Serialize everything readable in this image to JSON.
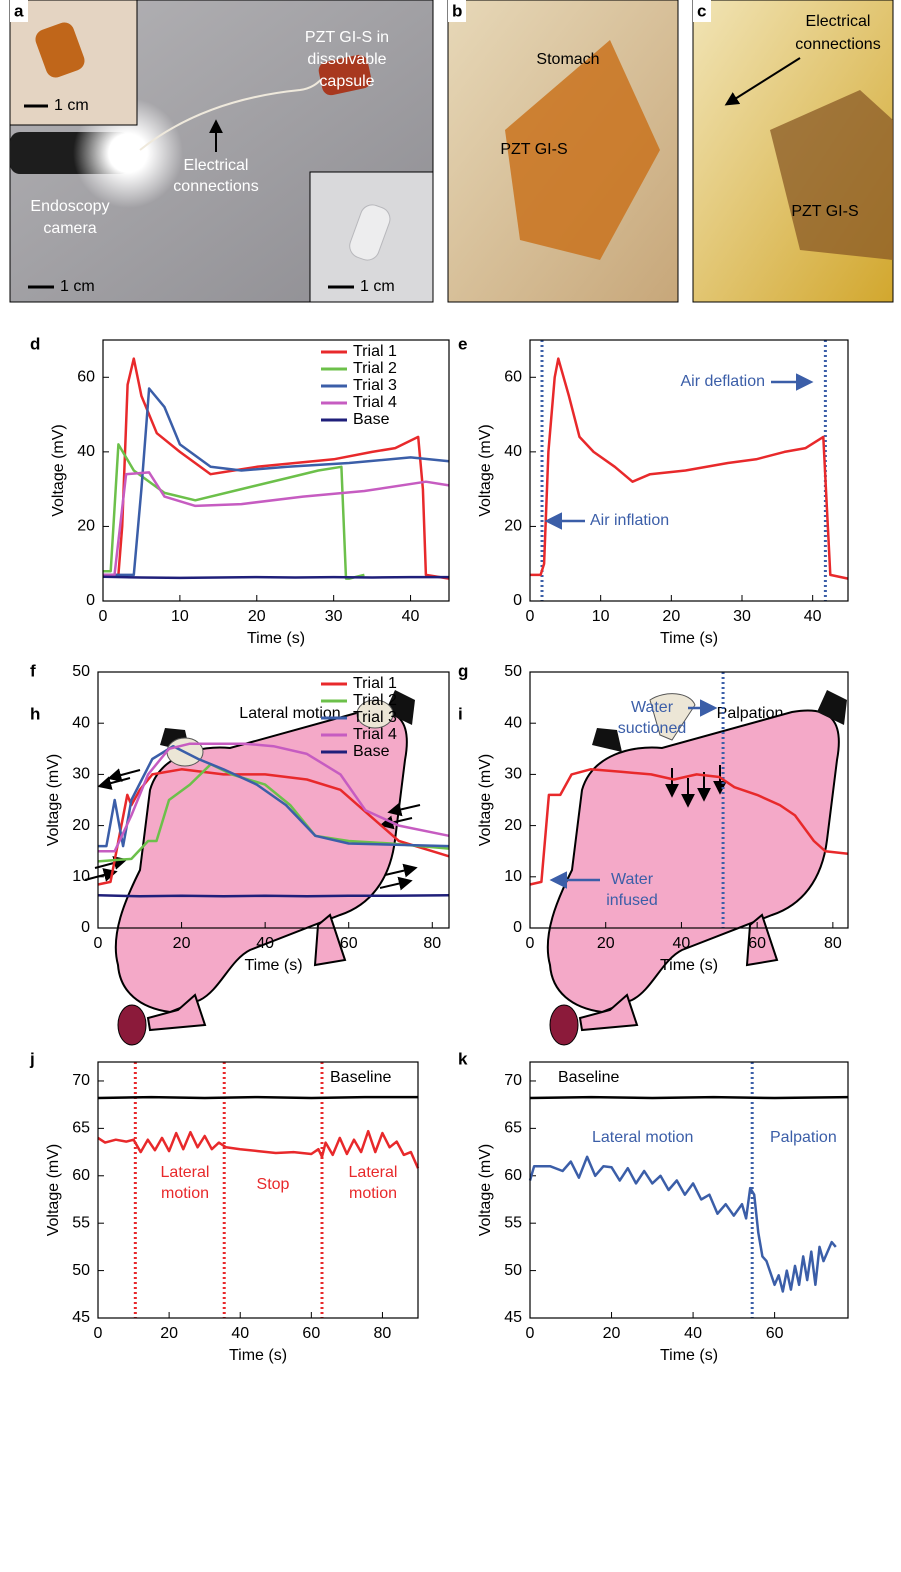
{
  "photos": {
    "a": {
      "label": "a",
      "capsule": [
        "PZT GI-S in",
        "dissolvable",
        "capsule"
      ],
      "connections": [
        "Electrical",
        "connections"
      ],
      "camera": [
        "Endoscopy",
        "camera"
      ],
      "scale": [
        "1 cm",
        "1 cm",
        "1 cm"
      ]
    },
    "b": {
      "label": "b",
      "organ": "Stomach",
      "sensor": "PZT GI-S"
    },
    "c": {
      "label": "c",
      "connections": [
        "Electrical",
        "connections"
      ],
      "sensor": "PZT GI-S"
    }
  },
  "illustrations": {
    "h": {
      "label": "h",
      "title": "Lateral motion"
    },
    "i": {
      "label": "i",
      "title": "Palpation"
    }
  },
  "chart_data": [
    {
      "type": "line",
      "panel": "d",
      "xlabel": "Time (s)",
      "ylabel": "Voltage (mV)",
      "xlim": [
        0,
        45
      ],
      "ylim": [
        0,
        70
      ],
      "xticks": [
        0,
        10,
        20,
        30,
        40
      ],
      "yticks": [
        0,
        20,
        40,
        60
      ],
      "legend": "upper right",
      "series": [
        {
          "name": "Trial 1",
          "color": "#e8292b",
          "x": [
            0,
            2,
            2.5,
            3.2,
            4,
            5,
            7,
            10,
            14,
            17,
            20,
            25,
            30,
            35,
            38,
            41,
            41.6,
            42,
            45
          ],
          "values": [
            7,
            7,
            20,
            58,
            65,
            55,
            45,
            40,
            34,
            35,
            36,
            37,
            38,
            40,
            41,
            44,
            30,
            7,
            6
          ]
        },
        {
          "name": "Trial 2",
          "color": "#6cc04a",
          "x": [
            0,
            1,
            2,
            4,
            8,
            12,
            18,
            24,
            28,
            31,
            31.6,
            32,
            34
          ],
          "values": [
            8,
            8,
            42,
            35,
            29,
            27,
            30,
            33,
            35,
            36,
            6,
            6,
            7
          ]
        },
        {
          "name": "Trial 3",
          "color": "#3b5ea8",
          "x": [
            0,
            4,
            5,
            6,
            8,
            10,
            14,
            18,
            24,
            32,
            40,
            45
          ],
          "values": [
            7,
            7,
            30,
            57,
            52,
            42,
            36,
            35,
            36,
            37,
            38.5,
            37.5
          ]
        },
        {
          "name": "Trial 4",
          "color": "#c65cc1",
          "x": [
            0,
            1.5,
            3,
            6,
            8,
            12,
            18,
            26,
            34,
            42,
            45
          ],
          "values": [
            7,
            7,
            34,
            34.5,
            28,
            25.5,
            26,
            28,
            29.5,
            32,
            31
          ]
        },
        {
          "name": "Base",
          "color": "#1f1f7a",
          "x": [
            0,
            5,
            10,
            15,
            20,
            25,
            30,
            35,
            40,
            45
          ],
          "values": [
            6.5,
            6.3,
            6.2,
            6.3,
            6.4,
            6.3,
            6.4,
            6.3,
            6.4,
            6.4
          ]
        }
      ]
    },
    {
      "type": "line",
      "panel": "e",
      "xlabel": "Time (s)",
      "ylabel": "Voltage (mV)",
      "xlim": [
        0,
        45
      ],
      "ylim": [
        0,
        70
      ],
      "xticks": [
        0,
        10,
        20,
        30,
        40
      ],
      "yticks": [
        0,
        20,
        40,
        60
      ],
      "vlines": [
        1.7,
        41.8
      ],
      "vline_color": "#3b5ea8",
      "annotations": [
        {
          "text": [
            "Air inflation"
          ],
          "color": "#3b5ea8"
        },
        {
          "text": [
            "Air deflation"
          ],
          "color": "#3b5ea8"
        }
      ],
      "series": [
        {
          "color": "#e8292b",
          "x": [
            0,
            1.5,
            2,
            2.6,
            3.5,
            4,
            5.5,
            7,
            9,
            12,
            14.5,
            17,
            22,
            28,
            32,
            36,
            39,
            41.5,
            42.5,
            45
          ],
          "values": [
            7,
            7,
            10,
            40,
            60,
            65,
            55,
            44,
            40,
            36,
            32,
            34,
            35,
            37,
            38,
            40,
            41,
            44,
            7,
            6
          ]
        }
      ]
    },
    {
      "type": "line",
      "panel": "f",
      "xlabel": "Time (s)",
      "ylabel": "Voltage (mV)",
      "xlim": [
        0,
        84
      ],
      "ylim": [
        0,
        50
      ],
      "xticks": [
        0,
        20,
        40,
        60,
        80
      ],
      "yticks": [
        0,
        10,
        20,
        30,
        40,
        50
      ],
      "legend": "upper right",
      "series": [
        {
          "name": "Trial 1",
          "color": "#e8292b",
          "x": [
            0,
            3,
            7,
            8,
            10,
            13,
            20,
            30,
            40,
            50,
            58,
            65,
            72,
            80,
            84
          ],
          "values": [
            8.5,
            9,
            26,
            24,
            27,
            30,
            31,
            30,
            30,
            29,
            27,
            22,
            17,
            15,
            14
          ]
        },
        {
          "name": "Trial 2",
          "color": "#6cc04a",
          "x": [
            0,
            8,
            12,
            14,
            17,
            22,
            27,
            32,
            40,
            46,
            52,
            60,
            70,
            84
          ],
          "values": [
            13,
            13.5,
            17,
            17,
            25,
            28,
            32,
            30,
            28,
            24,
            18,
            17,
            16.5,
            15.5
          ]
        },
        {
          "name": "Trial 3",
          "color": "#3b5ea8",
          "x": [
            0,
            2,
            4,
            6,
            8,
            13,
            18,
            24,
            30,
            38,
            45,
            52,
            60,
            84
          ],
          "values": [
            16,
            16,
            25,
            16,
            25,
            33,
            35.5,
            33,
            31,
            28,
            24,
            18,
            16.5,
            16
          ]
        },
        {
          "name": "Trial 4",
          "color": "#c65cc1",
          "x": [
            0,
            4,
            8,
            12,
            17,
            22,
            35,
            42,
            50,
            58,
            64,
            72,
            84
          ],
          "values": [
            15,
            15,
            22,
            30,
            35,
            36,
            36,
            35.5,
            34,
            30,
            23,
            20,
            18
          ]
        },
        {
          "name": "Base",
          "color": "#1f1f7a",
          "x": [
            0,
            10,
            20,
            30,
            40,
            50,
            60,
            70,
            84
          ],
          "values": [
            6.4,
            6.2,
            6.3,
            6.2,
            6.3,
            6.2,
            6.3,
            6.3,
            6.4
          ]
        }
      ]
    },
    {
      "type": "line",
      "panel": "g",
      "xlabel": "Time (s)",
      "ylabel": "Voltage (mV)",
      "xlim": [
        0,
        84
      ],
      "ylim": [
        0,
        50
      ],
      "xticks": [
        0,
        20,
        40,
        60,
        80
      ],
      "yticks": [
        0,
        10,
        20,
        30,
        40,
        50
      ],
      "vlines": [
        51
      ],
      "vline_color": "#3b5ea8",
      "annotations": [
        {
          "text": [
            "Water",
            "suctioned"
          ],
          "color": "#3b5ea8"
        },
        {
          "text": [
            "Water",
            "infused"
          ],
          "color": "#3b5ea8"
        }
      ],
      "series": [
        {
          "color": "#e8292b",
          "x": [
            0,
            3,
            5,
            8,
            11,
            16,
            24,
            32,
            38,
            44,
            50,
            54,
            60,
            66,
            70,
            75,
            78,
            84
          ],
          "values": [
            8.5,
            9,
            26,
            26,
            30,
            31,
            30.5,
            30,
            29,
            30,
            29.5,
            27.5,
            26,
            24,
            22,
            17,
            15,
            14.5
          ]
        }
      ]
    },
    {
      "type": "line",
      "panel": "j",
      "xlabel": "Time (s)",
      "ylabel": "Voltage (mV)",
      "xlim": [
        0,
        90
      ],
      "ylim": [
        45,
        72
      ],
      "xticks": [
        0,
        20,
        40,
        60,
        80
      ],
      "yticks": [
        45,
        50,
        55,
        60,
        65,
        70
      ],
      "vlines": [
        10.5,
        35.5,
        63
      ],
      "vline_color": "#e8292b",
      "annotations": [
        {
          "text": [
            "Baseline"
          ],
          "color": "#000000"
        },
        {
          "text": [
            "Lateral",
            "motion"
          ],
          "color": "#e8292b"
        },
        {
          "text": [
            "Stop"
          ],
          "color": "#e8292b"
        },
        {
          "text": [
            "Lateral",
            "motion"
          ],
          "color": "#e8292b"
        }
      ],
      "series": [
        {
          "color": "#000000",
          "x": [
            0,
            15,
            30,
            45,
            60,
            75,
            90
          ],
          "values": [
            68.2,
            68.3,
            68.2,
            68.3,
            68.2,
            68.3,
            68.3
          ]
        },
        {
          "color": "#e8292b",
          "x": [
            0,
            2,
            5,
            8,
            10,
            12,
            14,
            16,
            18,
            20,
            22,
            24,
            26,
            28,
            30,
            32,
            34,
            36,
            40,
            45,
            50,
            55,
            60,
            62,
            63,
            64,
            66,
            68,
            70,
            72,
            74,
            76,
            78,
            80,
            82,
            84,
            86,
            88,
            90
          ],
          "values": [
            64,
            63.5,
            63.8,
            63.6,
            63.8,
            62.5,
            63.8,
            62.7,
            64,
            62.6,
            64.5,
            62.8,
            64.6,
            63,
            64.2,
            62.8,
            63.5,
            63,
            62.8,
            62.6,
            62.4,
            62.5,
            62.3,
            62.8,
            62,
            63.5,
            62.2,
            64,
            62.3,
            63.8,
            62.5,
            64.7,
            62.5,
            64.5,
            63,
            63.6,
            62.2,
            62.5,
            60.8
          ]
        }
      ]
    },
    {
      "type": "line",
      "panel": "k",
      "xlabel": "Time (s)",
      "ylabel": "Voltage (mV)",
      "xlim": [
        0,
        78
      ],
      "ylim": [
        45,
        72
      ],
      "xticks": [
        0,
        20,
        40,
        60
      ],
      "yticks": [
        45,
        50,
        55,
        60,
        65,
        70
      ],
      "vlines": [
        54.5
      ],
      "vline_color": "#3b5ea8",
      "annotations": [
        {
          "text": [
            "Baseline"
          ],
          "color": "#000000"
        },
        {
          "text": [
            "Lateral motion"
          ],
          "color": "#3b5ea8"
        },
        {
          "text": [
            "Palpation"
          ],
          "color": "#3b5ea8"
        }
      ],
      "series": [
        {
          "color": "#000000",
          "x": [
            0,
            15,
            30,
            45,
            60,
            78
          ],
          "values": [
            68.2,
            68.3,
            68.2,
            68.3,
            68.2,
            68.3
          ]
        },
        {
          "color": "#3b5ea8",
          "x": [
            0,
            1,
            5,
            8,
            10,
            12,
            14,
            16,
            18,
            20,
            22,
            24,
            26,
            28,
            30,
            32,
            34,
            36,
            38,
            40,
            42,
            44,
            46,
            48,
            50,
            52,
            53,
            54,
            55,
            56,
            57,
            58,
            60,
            61,
            62,
            63,
            64,
            65,
            66,
            67,
            68,
            69,
            70,
            71,
            72,
            74,
            75
          ],
          "values": [
            59.5,
            61,
            61,
            60.5,
            61.5,
            59.8,
            62,
            60,
            61,
            60.9,
            59.5,
            60.8,
            59.2,
            60.5,
            59.2,
            60,
            58.5,
            59.5,
            58,
            59.2,
            57.5,
            58,
            56,
            57,
            55.8,
            57,
            55.5,
            58.7,
            58,
            54,
            51.5,
            51,
            48.5,
            49.5,
            47.8,
            50,
            48,
            50.5,
            48.5,
            51.5,
            49,
            52,
            48.5,
            52.5,
            51,
            53,
            52.5
          ]
        }
      ]
    }
  ]
}
